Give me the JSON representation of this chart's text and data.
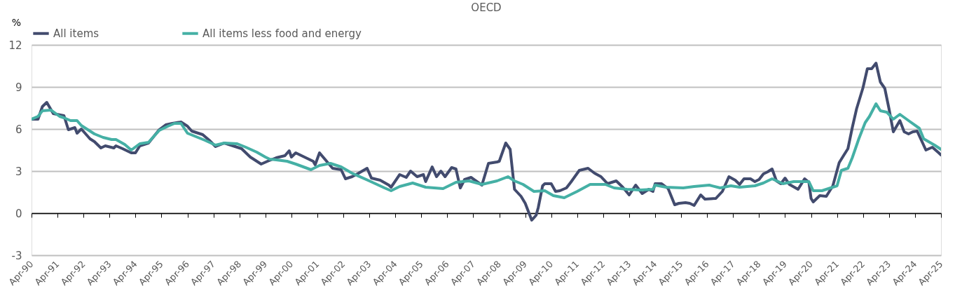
{
  "chart_data": {
    "type": "line",
    "title": "OECD",
    "ylabel": "%",
    "xlim": [
      "1990-04",
      "2025-04"
    ],
    "xticks": [
      {
        "value": "1990-04",
        "label": "Apr-90"
      },
      {
        "value": "1991-04",
        "label": "Apr-91"
      },
      {
        "value": "1992-04",
        "label": "Apr-92"
      },
      {
        "value": "1993-04",
        "label": "Apr-93"
      },
      {
        "value": "1994-04",
        "label": "Apr-94"
      },
      {
        "value": "1995-04",
        "label": "Apr-95"
      },
      {
        "value": "1996-04",
        "label": "Apr-96"
      },
      {
        "value": "1997-04",
        "label": "Apr-97"
      },
      {
        "value": "1998-04",
        "label": "Apr-98"
      },
      {
        "value": "1999-04",
        "label": "Apr-99"
      },
      {
        "value": "2000-04",
        "label": "Apr-00"
      },
      {
        "value": "2001-04",
        "label": "Apr-01"
      },
      {
        "value": "2002-04",
        "label": "Apr-02"
      },
      {
        "value": "2003-04",
        "label": "Apr-03"
      },
      {
        "value": "2004-04",
        "label": "Apr-04"
      },
      {
        "value": "2005-04",
        "label": "Apr-05"
      },
      {
        "value": "2006-04",
        "label": "Apr-06"
      },
      {
        "value": "2007-04",
        "label": "Apr-07"
      },
      {
        "value": "2008-04",
        "label": "Apr-08"
      },
      {
        "value": "2009-04",
        "label": "Apr-09"
      },
      {
        "value": "2010-04",
        "label": "Apr-10"
      },
      {
        "value": "2011-04",
        "label": "Apr-11"
      },
      {
        "value": "2012-04",
        "label": "Apr-12"
      },
      {
        "value": "2013-04",
        "label": "Apr-13"
      },
      {
        "value": "2014-04",
        "label": "Apr-14"
      },
      {
        "value": "2015-04",
        "label": "Apr-15"
      },
      {
        "value": "2016-04",
        "label": "Apr-16"
      },
      {
        "value": "2017-04",
        "label": "Apr-17"
      },
      {
        "value": "2018-04",
        "label": "Apr-18"
      },
      {
        "value": "2019-04",
        "label": "Apr-19"
      },
      {
        "value": "2020-04",
        "label": "Apr-20"
      },
      {
        "value": "2021-04",
        "label": "Apr-21"
      },
      {
        "value": "2022-04",
        "label": "Apr-22"
      },
      {
        "value": "2023-04",
        "label": "Apr-23"
      },
      {
        "value": "2024-04",
        "label": "Apr-24"
      },
      {
        "value": "2025-04",
        "label": "Apr-25"
      }
    ],
    "ylim": [
      -3,
      12
    ],
    "yticks": [
      -3,
      0,
      3,
      6,
      9,
      12
    ],
    "grid": "y",
    "legend": "top",
    "line_style": "solid",
    "marker": "none",
    "series": [
      {
        "name": "All items",
        "color": "#424b6e",
        "x": [
          "1990-04",
          "1990-07",
          "1990-09",
          "1990-11",
          "1991-02",
          "1991-07",
          "1991-09",
          "1991-12",
          "1992-01",
          "1992-03",
          "1992-07",
          "1992-09",
          "1992-12",
          "1993-02",
          "1993-06",
          "1993-07",
          "1993-10",
          "1994-02",
          "1994-04",
          "1994-06",
          "1994-10",
          "1995-03",
          "1995-06",
          "1995-09",
          "1996-01",
          "1996-04",
          "1996-06",
          "1996-11",
          "1997-02",
          "1997-05",
          "1997-09",
          "1997-12",
          "1998-05",
          "1998-09",
          "1999-02",
          "1999-05",
          "1999-09",
          "2000-01",
          "2000-03",
          "2000-04",
          "2000-06",
          "2000-10",
          "2001-02",
          "2001-03",
          "2001-05",
          "2001-08",
          "2001-11",
          "2002-03",
          "2002-05",
          "2002-08",
          "2002-11",
          "2003-03",
          "2003-05",
          "2003-09",
          "2004-01",
          "2004-02",
          "2004-06",
          "2004-09",
          "2004-11",
          "2005-02",
          "2005-05",
          "2005-06",
          "2005-09",
          "2005-11",
          "2006-01",
          "2006-03",
          "2006-06",
          "2006-08",
          "2006-10",
          "2006-12",
          "2007-03",
          "2007-08",
          "2007-11",
          "2008-03",
          "2008-04",
          "2008-07",
          "2008-09",
          "2008-11",
          "2009-02",
          "2009-04",
          "2009-07",
          "2009-09",
          "2009-10",
          "2009-12",
          "2010-01",
          "2010-04",
          "2010-06",
          "2010-08",
          "2010-11",
          "2011-01",
          "2011-05",
          "2011-09",
          "2011-12",
          "2012-03",
          "2012-06",
          "2012-10",
          "2013-01",
          "2013-04",
          "2013-07",
          "2013-10",
          "2014-01",
          "2014-03",
          "2014-04",
          "2014-07",
          "2014-10",
          "2015-01",
          "2015-03",
          "2015-06",
          "2015-08",
          "2015-10",
          "2016-01",
          "2016-03",
          "2016-08",
          "2016-11",
          "2017-02",
          "2017-05",
          "2017-07",
          "2017-09",
          "2017-12",
          "2018-02",
          "2018-04",
          "2018-06",
          "2018-08",
          "2018-10",
          "2018-12",
          "2019-02",
          "2019-04",
          "2019-06",
          "2019-10",
          "2020-01",
          "2020-03",
          "2020-04",
          "2020-05",
          "2020-08",
          "2020-11",
          "2021-02",
          "2021-05",
          "2021-07",
          "2021-09",
          "2021-11",
          "2022-01",
          "2022-04",
          "2022-06",
          "2022-08",
          "2022-10",
          "2022-12",
          "2023-02",
          "2023-04",
          "2023-06",
          "2023-09",
          "2023-11",
          "2024-01",
          "2024-03",
          "2024-05",
          "2024-09",
          "2024-12",
          "2025-03",
          "2025-04"
        ],
        "values": [
          6.7,
          6.7,
          7.6,
          7.9,
          7.1,
          6.95,
          5.95,
          6.1,
          5.7,
          6.0,
          5.3,
          5.1,
          4.65,
          4.8,
          4.65,
          4.8,
          4.6,
          4.3,
          4.3,
          4.8,
          5.0,
          5.95,
          6.3,
          6.4,
          6.5,
          6.2,
          5.85,
          5.6,
          5.2,
          4.75,
          5.0,
          4.85,
          4.6,
          4.0,
          3.5,
          3.7,
          3.95,
          4.1,
          4.45,
          4.0,
          4.3,
          4.0,
          3.7,
          3.45,
          4.3,
          3.75,
          3.2,
          3.1,
          2.45,
          2.6,
          2.85,
          3.2,
          2.5,
          2.35,
          2.0,
          1.85,
          2.75,
          2.55,
          3.0,
          2.6,
          2.75,
          2.25,
          3.3,
          2.6,
          3.0,
          2.6,
          3.25,
          3.15,
          1.8,
          2.4,
          2.55,
          2.0,
          3.55,
          3.65,
          3.7,
          5.0,
          4.55,
          1.7,
          1.2,
          0.7,
          -0.5,
          -0.15,
          0.4,
          1.95,
          2.1,
          2.1,
          1.55,
          1.6,
          1.8,
          2.2,
          3.05,
          3.2,
          2.85,
          2.6,
          2.1,
          2.3,
          1.85,
          1.3,
          2.0,
          1.4,
          1.7,
          1.55,
          2.1,
          2.1,
          1.75,
          0.6,
          0.7,
          0.75,
          0.7,
          0.55,
          1.3,
          1.0,
          1.05,
          1.55,
          2.6,
          2.35,
          2.05,
          2.45,
          2.45,
          2.25,
          2.4,
          2.8,
          2.95,
          3.15,
          2.3,
          2.1,
          2.5,
          2.05,
          1.7,
          2.45,
          2.2,
          1.05,
          0.8,
          1.25,
          1.2,
          1.95,
          3.6,
          4.1,
          4.6,
          6.1,
          7.45,
          8.95,
          10.3,
          10.3,
          10.7,
          9.35,
          8.9,
          7.45,
          5.8,
          6.6,
          5.8,
          5.65,
          5.8,
          5.85,
          4.5,
          4.7,
          4.3,
          4.15
        ]
      },
      {
        "name": "All items less food and energy",
        "color": "#45b0a5",
        "x": [
          "1990-04",
          "1990-07",
          "1990-09",
          "1991-01",
          "1991-05",
          "1991-07",
          "1991-10",
          "1992-01",
          "1992-03",
          "1992-06",
          "1992-09",
          "1993-01",
          "1993-05",
          "1993-07",
          "1993-11",
          "1994-02",
          "1994-06",
          "1994-10",
          "1995-03",
          "1995-07",
          "1995-10",
          "1996-01",
          "1996-04",
          "1996-08",
          "1996-12",
          "1997-05",
          "1997-09",
          "1998-03",
          "1998-07",
          "1998-12",
          "1999-04",
          "1999-06",
          "1999-09",
          "2000-02",
          "2000-06",
          "2001-01",
          "2001-05",
          "2001-10",
          "2002-03",
          "2002-08",
          "2003-04",
          "2003-11",
          "2004-02",
          "2004-06",
          "2004-12",
          "2005-06",
          "2005-10",
          "2006-02",
          "2006-08",
          "2007-02",
          "2007-08",
          "2008-03",
          "2008-08",
          "2008-11",
          "2009-03",
          "2009-08",
          "2010-01",
          "2010-05",
          "2010-10",
          "2011-04",
          "2011-10",
          "2012-05",
          "2012-09",
          "2013-03",
          "2013-09",
          "2014-03",
          "2014-04",
          "2014-09",
          "2015-05",
          "2015-10",
          "2016-05",
          "2016-10",
          "2017-03",
          "2017-07",
          "2018-02",
          "2018-06",
          "2018-10",
          "2019-03",
          "2019-08",
          "2019-12",
          "2020-03",
          "2020-05",
          "2020-09",
          "2021-01",
          "2021-04",
          "2021-06",
          "2021-09",
          "2021-11",
          "2022-02",
          "2022-05",
          "2022-07",
          "2022-10",
          "2022-12",
          "2023-03",
          "2023-06",
          "2023-09",
          "2024-01",
          "2024-06",
          "2024-08",
          "2025-01",
          "2025-04"
        ],
        "values": [
          6.7,
          6.9,
          7.3,
          7.35,
          6.9,
          6.8,
          6.6,
          6.6,
          6.25,
          5.95,
          5.65,
          5.4,
          5.25,
          5.25,
          4.9,
          4.5,
          4.95,
          5.05,
          5.9,
          6.2,
          6.4,
          6.4,
          5.7,
          5.45,
          5.2,
          4.85,
          5.0,
          4.95,
          4.7,
          4.35,
          4.0,
          3.85,
          3.8,
          3.7,
          3.5,
          3.1,
          3.4,
          3.55,
          3.3,
          2.85,
          2.3,
          1.8,
          1.6,
          1.9,
          2.15,
          1.85,
          1.8,
          1.75,
          2.2,
          2.3,
          2.05,
          2.3,
          2.6,
          2.3,
          2.05,
          1.55,
          1.6,
          1.25,
          1.1,
          1.55,
          2.05,
          2.05,
          1.8,
          1.7,
          1.65,
          1.7,
          2.0,
          1.85,
          1.8,
          1.9,
          2.0,
          1.8,
          1.95,
          1.85,
          1.95,
          2.15,
          2.45,
          2.1,
          2.25,
          2.25,
          2.25,
          1.6,
          1.6,
          1.8,
          1.95,
          3.05,
          3.2,
          3.95,
          5.3,
          6.45,
          6.9,
          7.8,
          7.3,
          7.2,
          6.7,
          7.05,
          6.6,
          6.05,
          5.3,
          4.85,
          4.55
        ]
      }
    ]
  }
}
